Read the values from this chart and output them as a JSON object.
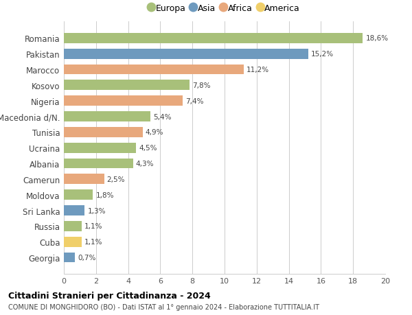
{
  "countries": [
    "Romania",
    "Pakistan",
    "Marocco",
    "Kosovo",
    "Nigeria",
    "Macedonia d/N.",
    "Tunisia",
    "Ucraina",
    "Albania",
    "Camerun",
    "Moldova",
    "Sri Lanka",
    "Russia",
    "Cuba",
    "Georgia"
  ],
  "values": [
    18.6,
    15.2,
    11.2,
    7.8,
    7.4,
    5.4,
    4.9,
    4.5,
    4.3,
    2.5,
    1.8,
    1.3,
    1.1,
    1.1,
    0.7
  ],
  "labels": [
    "18,6%",
    "15,2%",
    "11,2%",
    "7,8%",
    "7,4%",
    "5,4%",
    "4,9%",
    "4,5%",
    "4,3%",
    "2,5%",
    "1,8%",
    "1,3%",
    "1,1%",
    "1,1%",
    "0,7%"
  ],
  "continents": [
    "Europa",
    "Asia",
    "Africa",
    "Europa",
    "Africa",
    "Europa",
    "Africa",
    "Europa",
    "Europa",
    "Africa",
    "Europa",
    "Asia",
    "Europa",
    "America",
    "Asia"
  ],
  "colors": {
    "Europa": "#a8c07a",
    "Asia": "#6e9abe",
    "Africa": "#e8a87c",
    "America": "#f0cf6a"
  },
  "legend_order": [
    "Europa",
    "Asia",
    "Africa",
    "America"
  ],
  "xlim": [
    0,
    20
  ],
  "xticks": [
    0,
    2,
    4,
    6,
    8,
    10,
    12,
    14,
    16,
    18,
    20
  ],
  "title": "Cittadini Stranieri per Cittadinanza - 2024",
  "subtitle": "COMUNE DI MONGHIDORO (BO) - Dati ISTAT al 1° gennaio 2024 - Elaborazione TUTTITALIA.IT",
  "bg_color": "#ffffff",
  "grid_color": "#cccccc",
  "bar_height": 0.65
}
